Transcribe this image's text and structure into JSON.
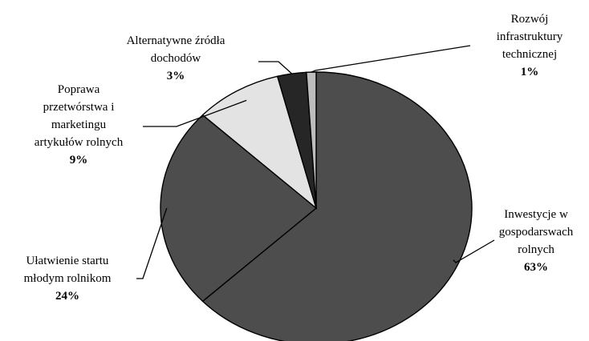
{
  "chart_data": {
    "type": "pie",
    "title": "",
    "legend": "none",
    "slices": [
      {
        "name": "Inwestycje w gospodarswach rolnych",
        "value": 63,
        "label_lines": [
          "Inwestycje w",
          "gospodarswach",
          "rolnych"
        ],
        "pct_label": "63%",
        "color": "#4d4d4d"
      },
      {
        "name": "Ułatwienie startu młodym rolnikom",
        "value": 24,
        "label_lines": [
          "Ułatwienie startu",
          "młodym rolnikom"
        ],
        "pct_label": "24%",
        "color": "#4d4d4d"
      },
      {
        "name": "Poprawa przetwórstwa i marketingu artykułów rolnych",
        "value": 9,
        "label_lines": [
          "Poprawa",
          "przetwórstwa i",
          "marketingu",
          "artykułów rolnych"
        ],
        "pct_label": "9%",
        "color": "#e3e3e3"
      },
      {
        "name": "Alternatywne źródła dochodów",
        "value": 3,
        "label_lines": [
          "Alternatywne źródła",
          "dochodów"
        ],
        "pct_label": "3%",
        "color": "#262626"
      },
      {
        "name": "Rozwój infrastruktury technicznej",
        "value": 1,
        "label_lines": [
          "Rozwój",
          "infrastruktury",
          "technicznej"
        ],
        "pct_label": "1%",
        "color": "#bdbdbd"
      }
    ]
  }
}
